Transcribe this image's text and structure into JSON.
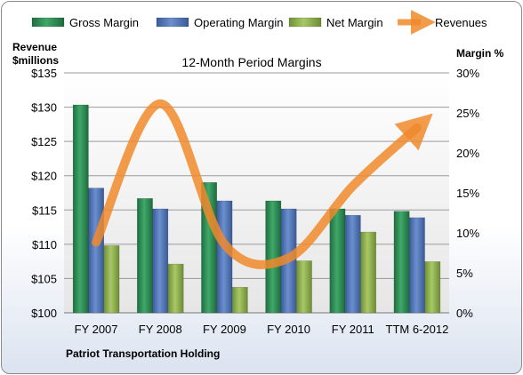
{
  "chart_data": {
    "type": "bar",
    "title": "12-Month Period Margins",
    "company": "Patriot Transportation Holding",
    "y_left_label": [
      "Revenue",
      "$millions"
    ],
    "y_right_label": "Margin %",
    "categories": [
      "FY 2007",
      "FY 2008",
      "FY 2009",
      "FY 2010",
      "FY 2011",
      "TTM 6-2012"
    ],
    "y_left_ticks": [
      "$100",
      "$105",
      "$110",
      "$115",
      "$120",
      "$125",
      "$130",
      "$135"
    ],
    "y_right_ticks": [
      "0%",
      "5%",
      "10%",
      "15%",
      "20%",
      "25%",
      "30%"
    ],
    "ylim_left": [
      100,
      135
    ],
    "ylim_right": [
      0,
      30
    ],
    "grid": true,
    "legend_position": "top",
    "series": [
      {
        "name": "Gross Margin",
        "type": "bar",
        "axis": "right",
        "color": "#2e8b57",
        "values": [
          26.0,
          14.3,
          16.3,
          14.0,
          13.0,
          12.7
        ]
      },
      {
        "name": "Operating Margin",
        "type": "bar",
        "axis": "right",
        "color": "#4f74b8",
        "values": [
          15.6,
          13.0,
          14.0,
          13.0,
          12.2,
          11.9
        ]
      },
      {
        "name": "Net Margin",
        "type": "bar",
        "axis": "right",
        "color": "#8fb04a",
        "values": [
          8.4,
          6.1,
          3.2,
          6.5,
          10.1,
          6.4
        ]
      },
      {
        "name": "Revenues",
        "type": "line",
        "axis": "left",
        "color": "#f08a2c",
        "values": [
          110.3,
          130.5,
          110.0,
          108.0,
          118.5,
          127.0
        ]
      }
    ]
  }
}
